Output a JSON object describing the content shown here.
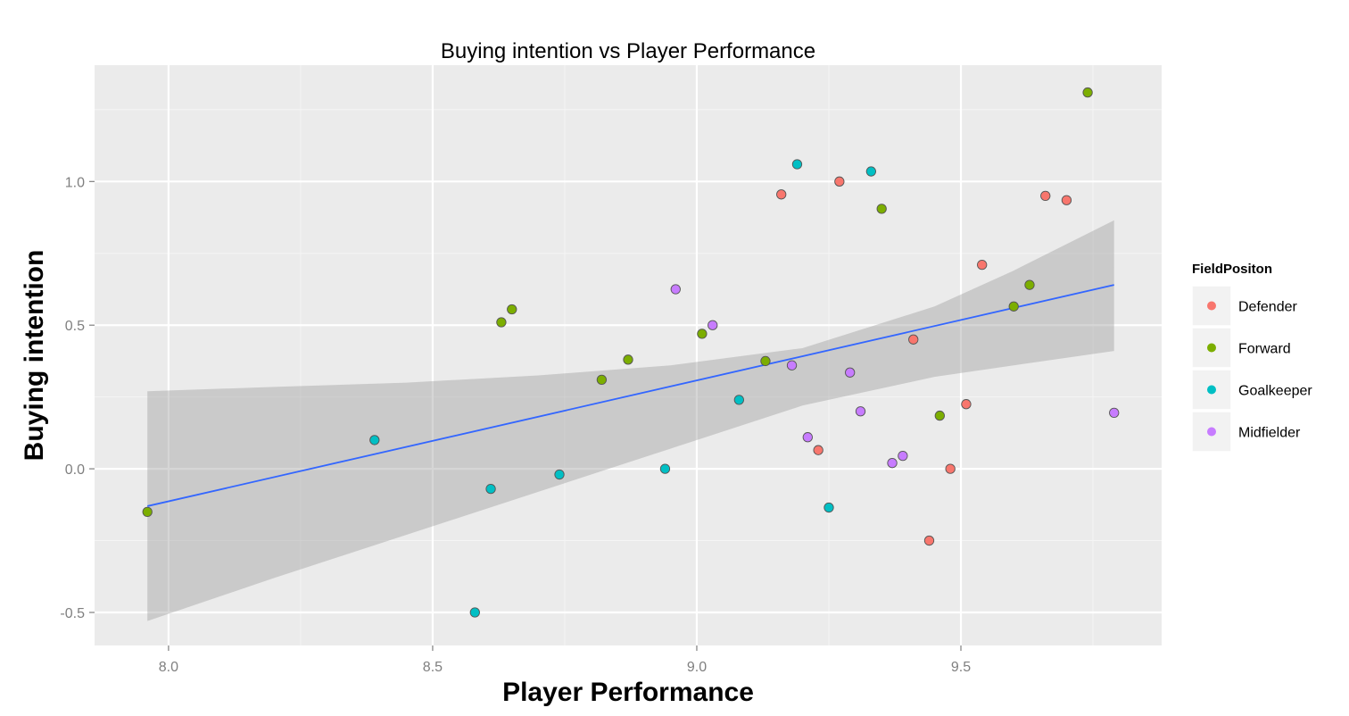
{
  "chart_data": {
    "type": "scatter",
    "title": "Buying intention vs Player Performance",
    "xlabel": "Player Performance",
    "ylabel": "Buying intention",
    "xlim": [
      7.86,
      9.88
    ],
    "ylim": [
      -0.615,
      1.405
    ],
    "x_ticks": [
      8.0,
      8.5,
      9.0,
      9.5
    ],
    "x_tick_labels": [
      "8.0",
      "8.5",
      "9.0",
      "9.5"
    ],
    "y_ticks": [
      -0.5,
      0.0,
      0.5,
      1.0
    ],
    "y_tick_labels": [
      "-0.5",
      "0.0",
      "0.5",
      "1.0"
    ],
    "grid": true,
    "legend": {
      "title": "FieldPositon",
      "position": "right"
    },
    "series": [
      {
        "name": "Defender",
        "color": "#F8766D",
        "points": [
          [
            9.16,
            0.955
          ],
          [
            9.27,
            1.0
          ],
          [
            9.66,
            0.95
          ],
          [
            9.7,
            0.935
          ],
          [
            9.54,
            0.71
          ],
          [
            9.41,
            0.45
          ],
          [
            9.51,
            0.225
          ],
          [
            9.23,
            0.065
          ],
          [
            9.48,
            0.0
          ],
          [
            9.44,
            -0.25
          ]
        ]
      },
      {
        "name": "Forward",
        "color": "#7CAE00",
        "points": [
          [
            7.96,
            -0.15
          ],
          [
            8.63,
            0.51
          ],
          [
            8.65,
            0.555
          ],
          [
            8.82,
            0.31
          ],
          [
            8.87,
            0.38
          ],
          [
            9.01,
            0.47
          ],
          [
            9.13,
            0.375
          ],
          [
            9.35,
            0.905
          ],
          [
            9.46,
            0.185
          ],
          [
            9.6,
            0.565
          ],
          [
            9.63,
            0.64
          ],
          [
            9.74,
            1.31
          ]
        ]
      },
      {
        "name": "Goalkeeper",
        "color": "#00BFC4",
        "points": [
          [
            8.39,
            0.1
          ],
          [
            8.58,
            -0.5
          ],
          [
            8.61,
            -0.07
          ],
          [
            8.74,
            -0.02
          ],
          [
            8.94,
            0.0
          ],
          [
            9.08,
            0.24
          ],
          [
            9.19,
            1.06
          ],
          [
            9.25,
            -0.135
          ],
          [
            9.33,
            1.035
          ]
        ]
      },
      {
        "name": "Midfielder",
        "color": "#C77CFF",
        "points": [
          [
            8.96,
            0.625
          ],
          [
            9.03,
            0.5
          ],
          [
            9.18,
            0.36
          ],
          [
            9.21,
            0.11
          ],
          [
            9.29,
            0.335
          ],
          [
            9.31,
            0.2
          ],
          [
            9.37,
            0.02
          ],
          [
            9.39,
            0.045
          ],
          [
            9.79,
            0.195
          ]
        ]
      }
    ],
    "fit_line": {
      "color": "#3366FF",
      "x": [
        7.96,
        9.79
      ],
      "y": [
        -0.13,
        0.64
      ]
    },
    "confidence_band": {
      "color": "#999999",
      "x": [
        7.96,
        8.2,
        8.45,
        8.7,
        8.95,
        9.2,
        9.45,
        9.6,
        9.79
      ],
      "lower": [
        -0.53,
        -0.38,
        -0.23,
        -0.08,
        0.07,
        0.22,
        0.32,
        0.36,
        0.41
      ],
      "upper": [
        0.27,
        0.285,
        0.3,
        0.325,
        0.36,
        0.42,
        0.565,
        0.69,
        0.865
      ]
    }
  }
}
